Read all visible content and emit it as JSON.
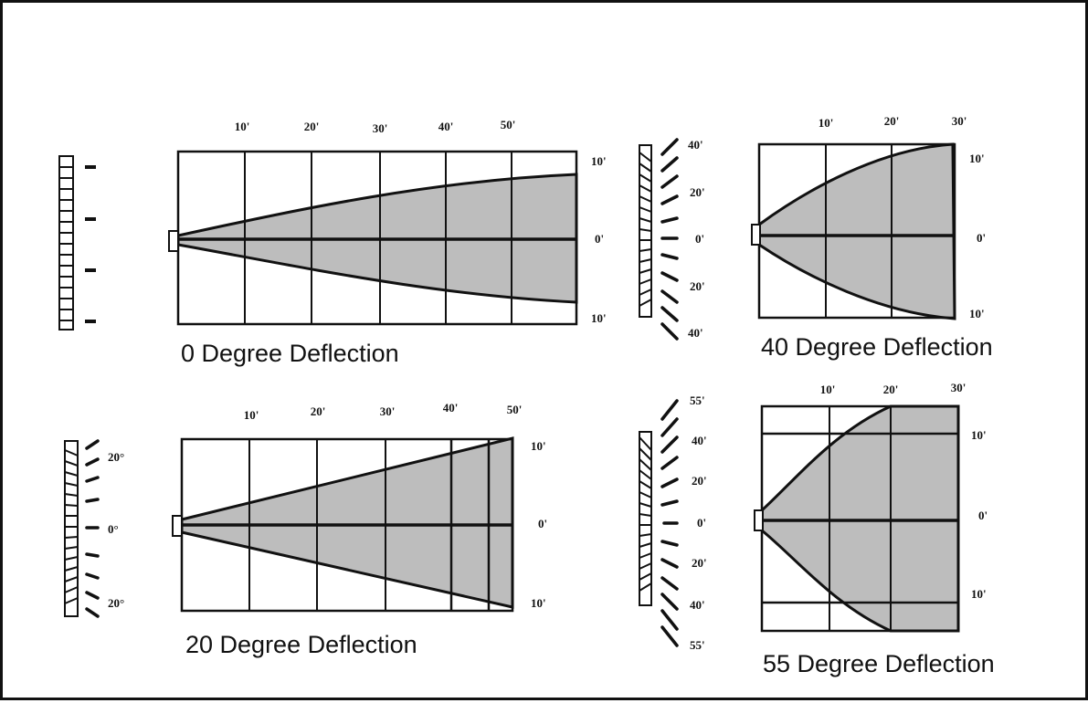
{
  "panels": {
    "p0": {
      "caption": "0 Degree Deflection",
      "top_ticks": [
        "10'",
        "20'",
        "30'",
        "40'",
        "50'"
      ],
      "right_ticks": [
        "10'",
        "0'",
        "10'"
      ],
      "angle_ticks": []
    },
    "p20": {
      "caption": "20 Degree Deflection",
      "top_ticks": [
        "10'",
        "20'",
        "30'",
        "40'",
        "50'"
      ],
      "right_ticks": [
        "10'",
        "0'",
        "10'"
      ],
      "angle_ticks": [
        "20°",
        "0°",
        "20°"
      ]
    },
    "p40": {
      "caption": "40 Degree Deflection",
      "top_ticks": [
        "10'",
        "20'",
        "30'"
      ],
      "right_ticks": [
        "10'",
        "0'",
        "10'"
      ],
      "angle_ticks": [
        "40'",
        "20'",
        "0'",
        "20'",
        "40'"
      ]
    },
    "p55": {
      "caption": "55 Degree Deflection",
      "top_ticks": [
        "10'",
        "20'",
        "30'"
      ],
      "right_ticks": [
        "10'",
        "0'",
        "10'"
      ],
      "angle_ticks": [
        "55'",
        "40'",
        "20'",
        "0'",
        "20'",
        "40'",
        "55'"
      ]
    }
  },
  "colors": {
    "ink": "#111111",
    "fill": "#bdbdbd",
    "background": "#ffffff"
  }
}
